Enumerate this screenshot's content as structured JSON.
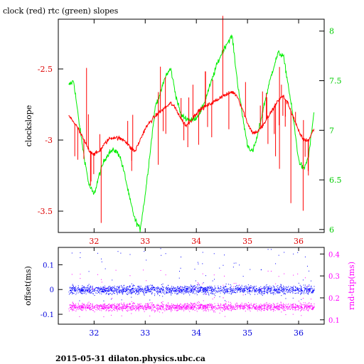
{
  "figure": {
    "title": "clock (red) rtc (green) slopes",
    "footer": "2015-05-31  dilaton.physics.ubc.ca"
  },
  "colors": {
    "clock": "#ff0000",
    "rtc": "#00ee00",
    "offset": "#0000ff",
    "rnd_trip": "#ff00ff",
    "red_axis": "#dd0000",
    "green_axis": "#00cc00",
    "blue_axis": "#0000dd"
  },
  "chart_data": [
    {
      "type": "line",
      "title": "clock (red) rtc (green) slopes",
      "xlim": [
        31.3,
        36.5
      ],
      "x_ticks": [
        32,
        33,
        34,
        35,
        36
      ],
      "x_tick_labels": [
        "32",
        "33",
        "34",
        "35",
        "36"
      ],
      "ylabel": "clockslope",
      "ylim": [
        -3.65,
        -2.15
      ],
      "y_ticks": [
        -3.5,
        -3,
        -2.5
      ],
      "y_tick_labels": [
        "-3.5",
        "-3",
        "-2.5"
      ],
      "y2lim": [
        5.97,
        8.12
      ],
      "y2_ticks": [
        6,
        6.5,
        7,
        7.5,
        8
      ],
      "y2_tick_labels": [
        "6",
        "6.5",
        "7",
        "7.5",
        "8"
      ],
      "grid": false,
      "series": [
        {
          "color": "red",
          "axis": "left",
          "x": [
            31.5,
            31.6,
            31.7,
            31.8,
            31.9,
            32.0,
            32.1,
            32.2,
            32.3,
            32.4,
            32.5,
            32.6,
            32.7,
            32.8,
            32.9,
            33.0,
            33.1,
            33.2,
            33.3,
            33.4,
            33.5,
            33.6,
            33.7,
            33.8,
            33.9,
            34.0,
            34.1,
            34.2,
            34.3,
            34.4,
            34.5,
            34.6,
            34.7,
            34.8,
            34.9,
            35.0,
            35.1,
            35.2,
            35.3,
            35.4,
            35.5,
            35.6,
            35.7,
            35.8,
            35.9,
            36.0,
            36.1,
            36.2,
            36.3
          ],
          "y": [
            -2.83,
            -2.87,
            -2.93,
            -3.0,
            -3.07,
            -3.1,
            -3.08,
            -3.03,
            -2.99,
            -2.98,
            -2.99,
            -3.0,
            -3.05,
            -3.08,
            -3.0,
            -2.92,
            -2.87,
            -2.83,
            -2.8,
            -2.77,
            -2.74,
            -2.78,
            -2.85,
            -2.9,
            -2.86,
            -2.81,
            -2.78,
            -2.76,
            -2.74,
            -2.72,
            -2.69,
            -2.68,
            -2.66,
            -2.69,
            -2.78,
            -2.88,
            -2.95,
            -2.94,
            -2.9,
            -2.84,
            -2.78,
            -2.72,
            -2.69,
            -2.75,
            -2.84,
            -2.94,
            -3.0,
            -3.0,
            -2.92
          ]
        },
        {
          "color": "green",
          "axis": "right",
          "x": [
            31.5,
            31.6,
            31.7,
            31.8,
            31.9,
            32.0,
            32.1,
            32.2,
            32.3,
            32.4,
            32.5,
            32.6,
            32.7,
            32.8,
            32.9,
            33.0,
            33.1,
            33.2,
            33.3,
            33.4,
            33.5,
            33.6,
            33.7,
            33.8,
            33.9,
            34.0,
            34.1,
            34.2,
            34.3,
            34.4,
            34.5,
            34.6,
            34.7,
            34.8,
            34.9,
            35.0,
            35.1,
            35.2,
            35.3,
            35.4,
            35.5,
            35.6,
            35.7,
            35.8,
            35.9,
            36.0,
            36.1,
            36.2,
            36.3
          ],
          "y": [
            7.45,
            7.5,
            7.1,
            6.75,
            6.45,
            6.35,
            6.55,
            6.7,
            6.78,
            6.8,
            6.75,
            6.55,
            6.3,
            6.1,
            6.0,
            6.35,
            6.8,
            7.25,
            7.38,
            7.55,
            7.62,
            7.35,
            7.15,
            7.12,
            7.1,
            7.13,
            7.2,
            7.35,
            7.5,
            7.66,
            7.78,
            7.88,
            7.95,
            7.5,
            7.15,
            6.85,
            6.78,
            6.95,
            7.2,
            7.42,
            7.62,
            7.78,
            7.75,
            7.45,
            7.1,
            6.7,
            6.6,
            6.75,
            7.18
          ]
        }
      ]
    },
    {
      "type": "scatter",
      "xlim": [
        31.3,
        36.5
      ],
      "x_ticks": [
        32,
        33,
        34,
        35,
        36
      ],
      "x_tick_labels": [
        "32",
        "33",
        "34",
        "35",
        "36"
      ],
      "ylabel": "offset(ms)",
      "ylim": [
        -0.14,
        0.17
      ],
      "y_ticks": [
        -0.1,
        0,
        0.1
      ],
      "y_tick_labels": [
        "-0.1",
        "0",
        "0.1"
      ],
      "y2label": "rnd-trip(ms)",
      "y2lim": [
        0.08,
        0.43
      ],
      "y2_ticks": [
        0.1,
        0.2,
        0.3,
        0.4
      ],
      "y2_tick_labels": [
        "0.1",
        "0.2",
        "0.3",
        "0.4"
      ],
      "grid": false,
      "series": [
        {
          "color": "blue",
          "axis": "left",
          "x_range": [
            31.5,
            36.3
          ],
          "center": 0.0,
          "spread": 0.03
        },
        {
          "color": "magenta",
          "axis": "right",
          "x_range": [
            31.5,
            36.3
          ],
          "center": 0.16,
          "spread": 0.03
        }
      ]
    }
  ]
}
